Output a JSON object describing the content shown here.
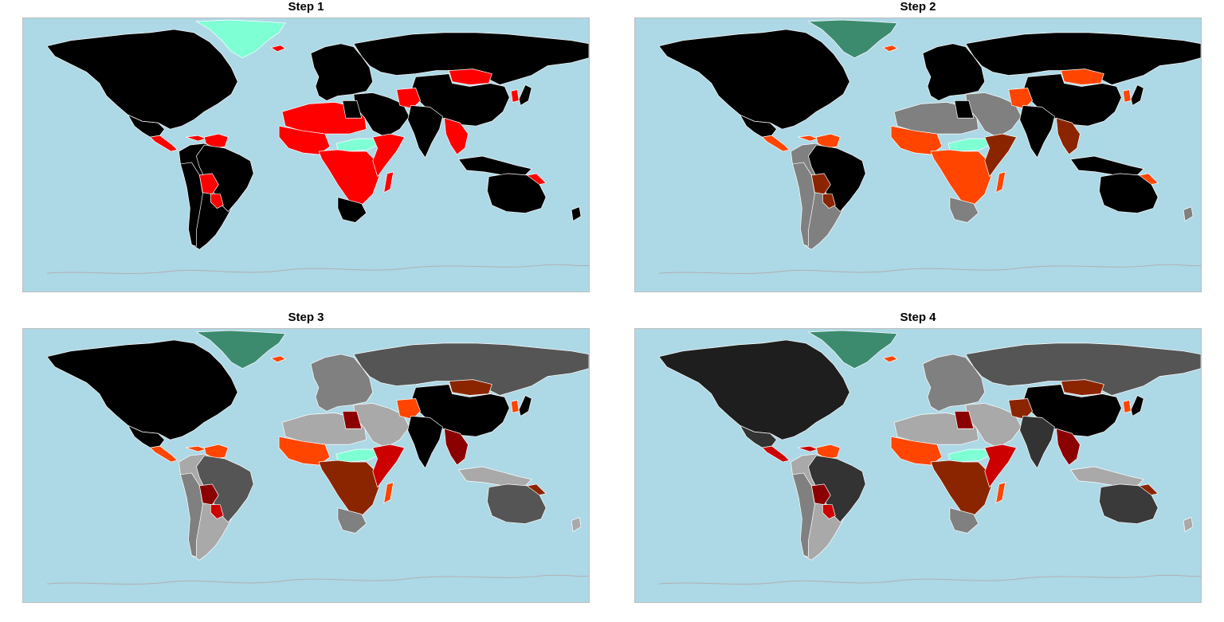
{
  "panels": [
    {
      "title": "Step 1",
      "colors": {
        "ocean": "#add8e6",
        "north_america": "#000000",
        "mexico": "#000000",
        "central_america": "#ff0000",
        "greenland": "#7fffd4",
        "iceland": "#ff0000",
        "south_america_main": "#000000",
        "brazil": "#000000",
        "andes": "#000000",
        "bolivia": "#ff0000",
        "paraguay": "#ff0000",
        "venezuela": "#ff0000",
        "europe": "#000000",
        "russia": "#000000",
        "mongolia": "#ff0000",
        "china": "#000000",
        "india": "#000000",
        "middle_east": "#000000",
        "afghanistan": "#ff0000",
        "se_asia": "#ff0000",
        "n_africa": "#ff0000",
        "egypt": "#000000",
        "w_africa": "#ff0000",
        "sudan_band": "#7fffd4",
        "c_africa": "#ff0000",
        "e_africa": "#ff0000",
        "s_africa": "#000000",
        "madagascar": "#ff0000",
        "australia": "#000000",
        "indonesia": "#000000",
        "png": "#ff0000",
        "japan": "#000000",
        "korea": "#ff0000",
        "nz": "#000000",
        "antarctica": "#b0b0b0"
      }
    },
    {
      "title": "Step 2",
      "colors": {
        "ocean": "#add8e6",
        "north_america": "#000000",
        "mexico": "#000000",
        "central_america": "#ff4500",
        "greenland": "#3d8b6f",
        "iceland": "#ff4500",
        "south_america_main": "#808080",
        "brazil": "#000000",
        "andes": "#808080",
        "bolivia": "#8b2500",
        "paraguay": "#8b2500",
        "venezuela": "#ff4500",
        "europe": "#000000",
        "russia": "#000000",
        "mongolia": "#ff4500",
        "china": "#000000",
        "india": "#000000",
        "middle_east": "#808080",
        "afghanistan": "#ff4500",
        "se_asia": "#8b2500",
        "n_africa": "#808080",
        "egypt": "#000000",
        "w_africa": "#ff4500",
        "sudan_band": "#7fffd4",
        "c_africa": "#ff4500",
        "e_africa": "#8b2500",
        "s_africa": "#808080",
        "madagascar": "#ff4500",
        "australia": "#000000",
        "indonesia": "#000000",
        "png": "#ff4500",
        "japan": "#000000",
        "korea": "#ff4500",
        "nz": "#808080",
        "antarctica": "#b0b0b0"
      }
    },
    {
      "title": "Step 3",
      "colors": {
        "ocean": "#add8e6",
        "north_america": "#000000",
        "mexico": "#000000",
        "central_america": "#ff4500",
        "greenland": "#3d8b6f",
        "iceland": "#ff4500",
        "south_america_main": "#a9a9a9",
        "brazil": "#555555",
        "andes": "#808080",
        "bolivia": "#8b0000",
        "paraguay": "#cc0000",
        "venezuela": "#ff4500",
        "europe": "#808080",
        "russia": "#555555",
        "mongolia": "#8b2500",
        "china": "#000000",
        "india": "#000000",
        "middle_east": "#a9a9a9",
        "afghanistan": "#ff4500",
        "se_asia": "#8b0000",
        "n_africa": "#a9a9a9",
        "egypt": "#8b0000",
        "w_africa": "#ff4500",
        "sudan_band": "#7fffd4",
        "c_africa": "#8b2500",
        "e_africa": "#cc0000",
        "s_africa": "#808080",
        "madagascar": "#ff4500",
        "australia": "#555555",
        "indonesia": "#a9a9a9",
        "png": "#8b2500",
        "japan": "#000000",
        "korea": "#ff4500",
        "nz": "#a9a9a9",
        "antarctica": "#b0b0b0"
      }
    },
    {
      "title": "Step 4",
      "colors": {
        "ocean": "#add8e6",
        "north_america": "#1e1e1e",
        "mexico": "#333333",
        "central_america": "#cc0000",
        "greenland": "#3d8b6f",
        "iceland": "#ff4500",
        "south_america_main": "#a9a9a9",
        "brazil": "#333333",
        "andes": "#808080",
        "bolivia": "#8b0000",
        "paraguay": "#cc0000",
        "venezuela": "#ff4500",
        "europe": "#808080",
        "russia": "#555555",
        "mongolia": "#8b2500",
        "china": "#000000",
        "india": "#333333",
        "middle_east": "#a9a9a9",
        "afghanistan": "#8b2500",
        "se_asia": "#8b0000",
        "n_africa": "#a9a9a9",
        "egypt": "#8b0000",
        "w_africa": "#ff4500",
        "sudan_band": "#7fffd4",
        "c_africa": "#8b2500",
        "e_africa": "#cc0000",
        "s_africa": "#808080",
        "madagascar": "#ff4500",
        "australia": "#3a3a3a",
        "indonesia": "#a9a9a9",
        "png": "#8b2500",
        "japan": "#000000",
        "korea": "#ff4500",
        "nz": "#a9a9a9",
        "antarctica": "#b0b0b0"
      }
    }
  ]
}
